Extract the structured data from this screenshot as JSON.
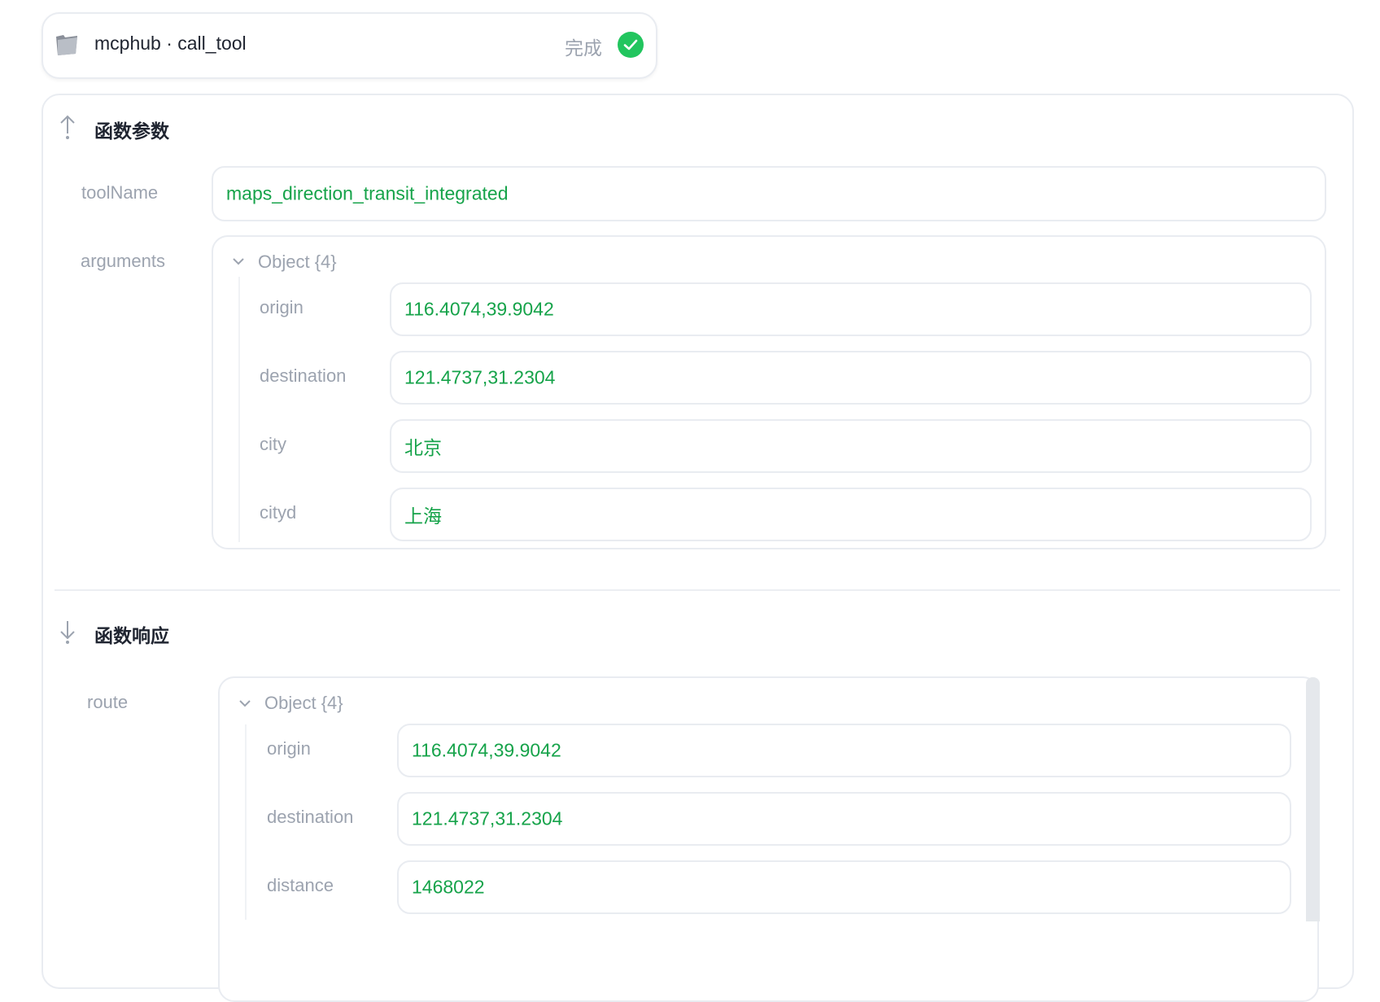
{
  "header": {
    "title": "mcphub · call_tool",
    "status": "完成",
    "icon": "folder-icon",
    "status_icon": "check-circle-icon",
    "status_color": "#22c55e"
  },
  "params": {
    "title": "函数参数",
    "icon": "arrow-up-icon",
    "toolName_label": "toolName",
    "toolName_value": "maps_direction_transit_integrated",
    "arguments_label": "arguments",
    "object_label": "Object {4}",
    "rows": [
      {
        "key": "origin",
        "value": "116.4074,39.9042"
      },
      {
        "key": "destination",
        "value": "121.4737,31.2304"
      },
      {
        "key": "city",
        "value": "北京"
      },
      {
        "key": "cityd",
        "value": "上海"
      }
    ]
  },
  "response": {
    "title": "函数响应",
    "icon": "arrow-down-icon",
    "route_label": "route",
    "object_label": "Object {4}",
    "rows": [
      {
        "key": "origin",
        "value": "116.4074,39.9042"
      },
      {
        "key": "destination",
        "value": "121.4737,31.2304"
      },
      {
        "key": "distance",
        "value": "1468022"
      }
    ]
  },
  "colors": {
    "value_text": "#16a34a",
    "label_text": "#9ca3af",
    "border": "#e9ecf1"
  }
}
